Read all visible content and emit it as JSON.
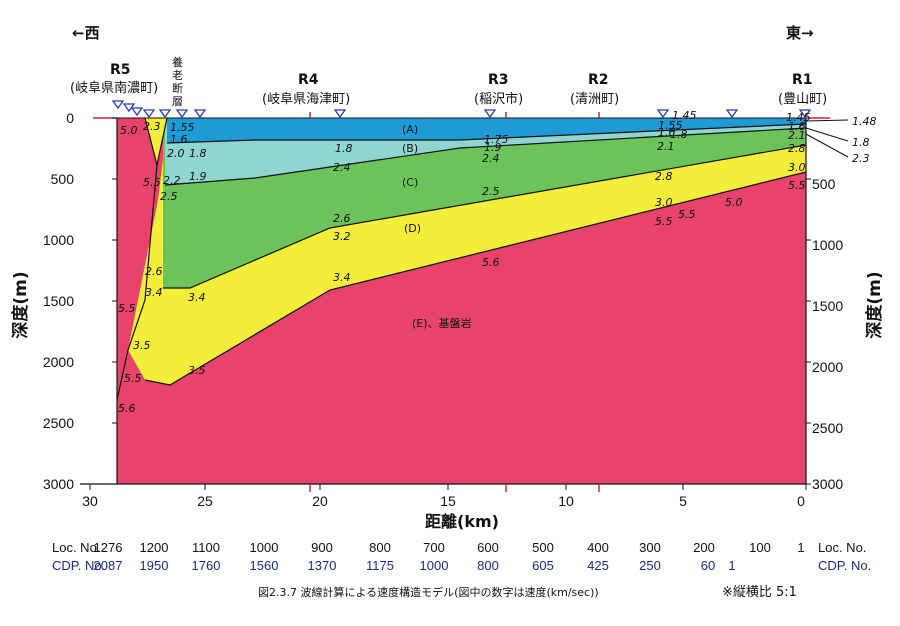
{
  "direction": {
    "west": "←西",
    "east": "東→"
  },
  "stations": [
    {
      "id": "R5",
      "name": "(岐阜県南濃町)"
    },
    {
      "id": "fault",
      "name_lines": [
        "養",
        "老",
        "断",
        "層"
      ]
    },
    {
      "id": "R4",
      "name": "(岐阜県海津町)"
    },
    {
      "id": "R3",
      "name": "(稲沢市)"
    },
    {
      "id": "R2",
      "name": "(清洲町)"
    },
    {
      "id": "R1",
      "name": "(豊山町)"
    }
  ],
  "axes": {
    "x_title": "距離(km)",
    "y_title_left": "深度(m)",
    "y_title_right": "深度(m)",
    "x_ticks": [
      "30",
      "25",
      "20",
      "15",
      "10",
      "5",
      "0"
    ],
    "y_ticks": [
      "0",
      "500",
      "1000",
      "1500",
      "2000",
      "2500",
      "3000"
    ],
    "y_ticks_right": [
      "500",
      "1000",
      "1500",
      "2000",
      "2500",
      "3000"
    ]
  },
  "layers": [
    {
      "label": "(A)",
      "color": "#1e9bd7"
    },
    {
      "label": "(B)",
      "color": "#8fd6d0"
    },
    {
      "label": "(C)",
      "color": "#6cc35a"
    },
    {
      "label": "(D)",
      "color": "#f2ee3a"
    },
    {
      "label": "(E)、基盤岩",
      "color": "#e8436a"
    }
  ],
  "velocities": {
    "v5_0_left": "5.0",
    "v2_3_top": "2.3",
    "v1_55": "1.55",
    "v1_6": "1.6",
    "v2_0": "2.0",
    "v1_8a": "1.8",
    "v5_5a": "5.5",
    "v2_2": "2.2",
    "v1_9": "1.9",
    "v2_5a": "2.5",
    "v1_8b": "1.8",
    "v1_75": "1.75",
    "v1_9b": "1.9",
    "v2_4a": "2.4",
    "v2_4b": "2.4",
    "v1_45a": "1.45",
    "v1_55b": "1.55",
    "v1_6b": "1.6",
    "v1_8c": "1.8",
    "v2_1": "2.1",
    "v1_45b": "1.45",
    "v1_6c": "1.6",
    "v2_1b": "2.1",
    "v2_8a": "2.8",
    "v2_8b": "2.8",
    "v3_0": "3.0",
    "v5_5r": "5.5",
    "v2_5b": "2.5",
    "v3_0b": "3.0",
    "v5_5b": "5.5",
    "v5_5c": "5.5",
    "v5_0b": "5.0",
    "v2_6a": "2.6",
    "v3_2": "3.2",
    "v2_6b": "2.6",
    "v3_4a": "3.4",
    "v3_4b": "3.4",
    "v3_4c": "3.4",
    "v5_6a": "5.6",
    "v5_5d": "5.5",
    "v3_5a": "3.5",
    "v5_5e": "5.5",
    "v3_5b": "3.5",
    "v5_6b": "5.6"
  },
  "right_callouts": [
    "1.48",
    "1.8",
    "2.3"
  ],
  "loc_row": {
    "label": "Loc. No.",
    "values": [
      "1276",
      "1200",
      "1100",
      "1000",
      "900",
      "800",
      "700",
      "600",
      "500",
      "400",
      "300",
      "200",
      "100",
      "1"
    ]
  },
  "cdp_row": {
    "label": "CDP. No.",
    "values": [
      "2087",
      "1950",
      "1760",
      "1560",
      "1370",
      "1175",
      "1000",
      "800",
      "605",
      "425",
      "250",
      "60",
      "1"
    ]
  },
  "caption": "図2.3.7  波線計算による速度構造モデル(図中の数字は速度(km/sec))",
  "ratio_note": "※縦横比  5:1",
  "colors": {
    "water_blue": "#1e9bd7",
    "marker_blue": "#2a3da8",
    "red_tick": "#d0203a"
  }
}
